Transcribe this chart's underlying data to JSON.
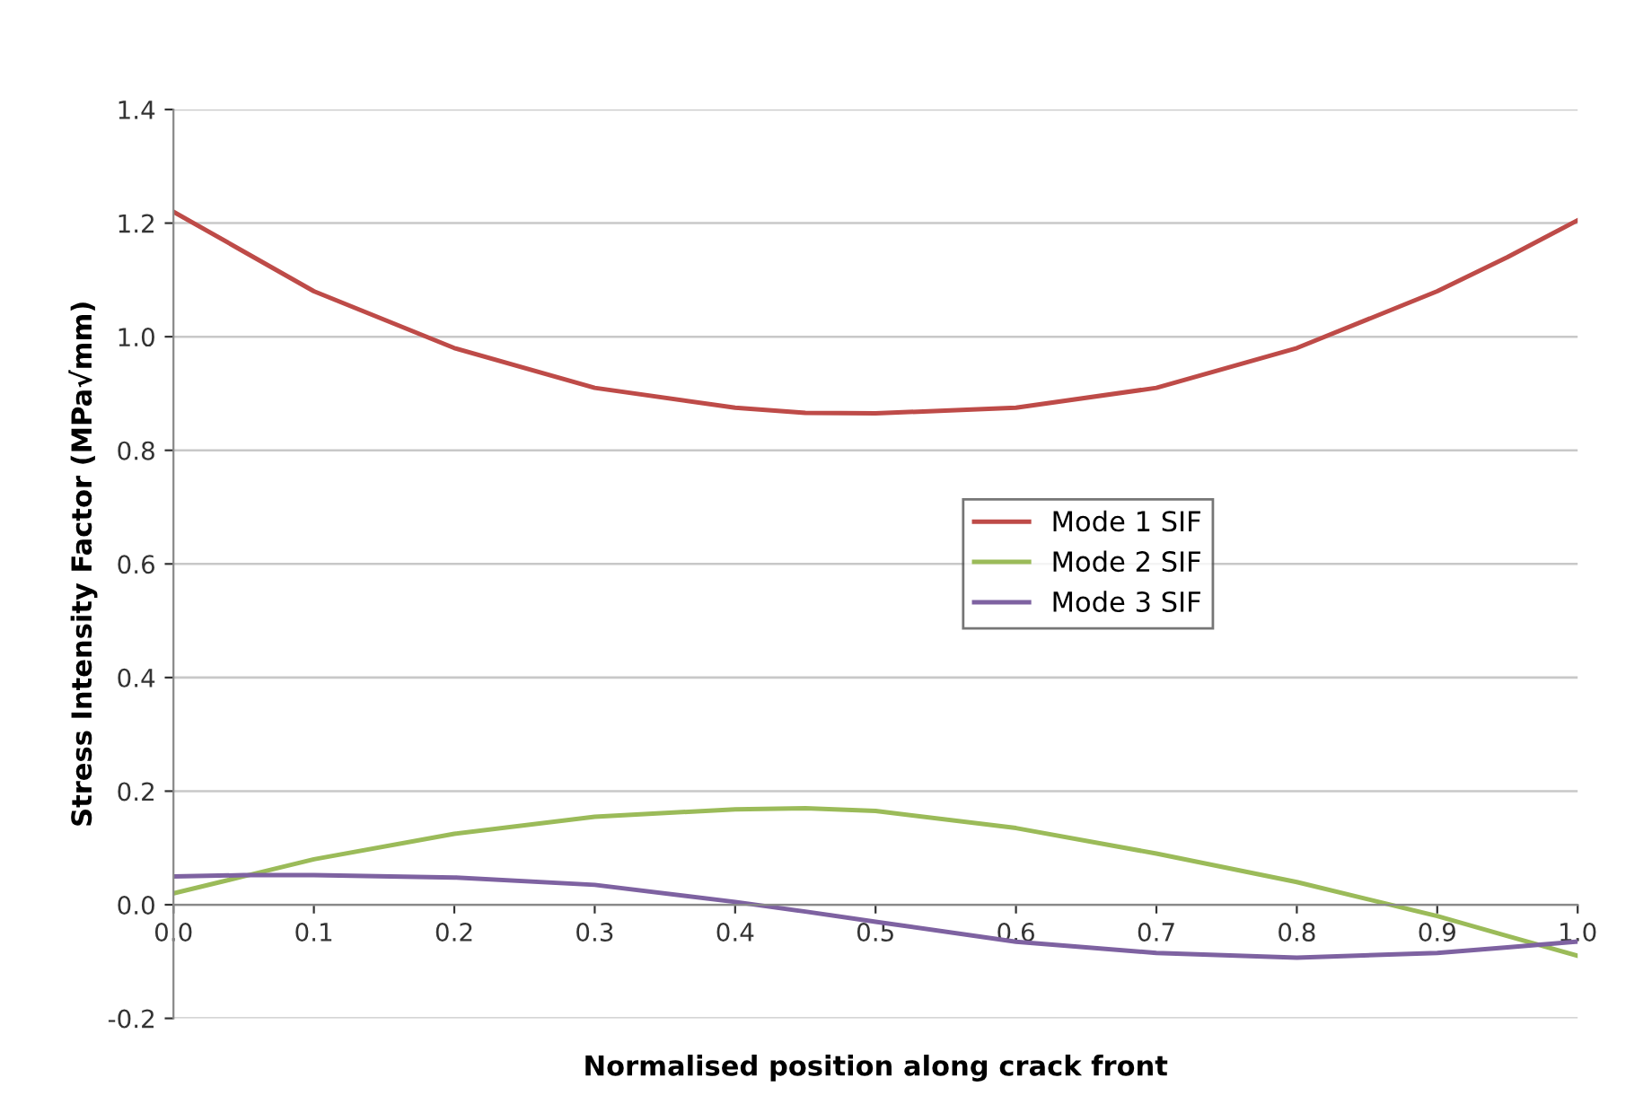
{
  "chart_data": {
    "type": "line",
    "xlabel": "Normalised position along crack front",
    "ylabel": "Stress Intensity Factor (MPa√mm)",
    "x": [
      0,
      0.05,
      0.1,
      0.2,
      0.3,
      0.4,
      0.45,
      0.5,
      0.6,
      0.7,
      0.8,
      0.9,
      0.95,
      1.0
    ],
    "series": [
      {
        "name": "Mode 1 SIF",
        "color": "#be4b48",
        "values": [
          1.22,
          1.15,
          1.08,
          0.98,
          0.91,
          0.875,
          0.866,
          0.865,
          0.875,
          0.91,
          0.98,
          1.08,
          1.14,
          1.205
        ]
      },
      {
        "name": "Mode 2 SIF",
        "color": "#9bbb59",
        "values": [
          0.02,
          0.05,
          0.08,
          0.125,
          0.155,
          0.168,
          0.17,
          0.165,
          0.135,
          0.09,
          0.04,
          -0.02,
          -0.055,
          -0.09
        ]
      },
      {
        "name": "Mode 3 SIF",
        "color": "#7e62a1",
        "values": [
          0.05,
          0.052,
          0.052,
          0.048,
          0.035,
          0.005,
          -0.012,
          -0.03,
          -0.065,
          -0.085,
          -0.093,
          -0.085,
          -0.075,
          -0.065
        ]
      }
    ],
    "xlim": [
      0,
      1.0
    ],
    "xticks": [
      {
        "value": 0,
        "label": "0.0"
      },
      0.1,
      0.2,
      0.3,
      0.4,
      0.5,
      0.6,
      0.7,
      0.8,
      0.9,
      {
        "value": 1.0,
        "label": "1.0"
      }
    ],
    "ylim": [
      -0.2,
      1.4
    ],
    "yticks": [
      -0.2,
      {
        "value": 0,
        "label": "0.0"
      },
      0.2,
      0.4,
      0.6,
      0.8,
      {
        "value": 1.0,
        "label": "1.0"
      },
      1.2,
      1.4
    ],
    "grid": "y",
    "legend": "center right",
    "marker": "none",
    "line_style": "solid"
  }
}
